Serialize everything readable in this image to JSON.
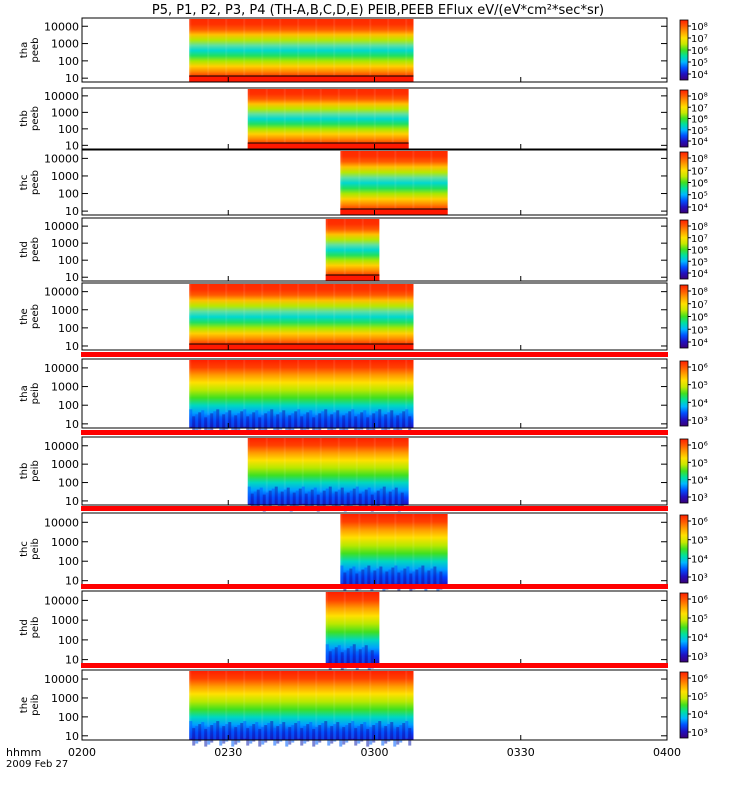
{
  "title": "P5, P1, P2, P3, P4 (TH-A,B,C,D,E) PEIB,PEEB EFlux eV/(eV*cm²*sec*sr)",
  "date_label": "2009 Feb 27",
  "time_axis_label": "hhmm",
  "colorscale": [
    "#3b0078",
    "#2010c0",
    "#0050ff",
    "#00b8ff",
    "#00e0a0",
    "#40e020",
    "#c8e800",
    "#ffe000",
    "#ffa000",
    "#ff5a00",
    "#ff2000"
  ],
  "chart_data": [
    {
      "type": "heatmap",
      "panel": "tha-peeb",
      "ylabel": [
        "tha",
        "peeb"
      ],
      "yticks": [
        "10000",
        "1000",
        "100",
        "10"
      ],
      "ylim": [
        6,
        30000
      ],
      "log_y": true,
      "x": [
        "0200",
        "0230",
        "0300",
        "0330",
        "0400"
      ],
      "xlim": [
        "02:00",
        "04:00"
      ],
      "data_range": [
        "02:22",
        "03:08"
      ],
      "colorbar_ticks": [
        "10⁸",
        "10⁷",
        "10⁶",
        "10⁵",
        "10⁴"
      ]
    },
    {
      "type": "heatmap",
      "panel": "thb-peeb",
      "ylabel": [
        "thb",
        "peeb"
      ],
      "yticks": [
        "10000",
        "1000",
        "100",
        "10"
      ],
      "ylim": [
        6,
        30000
      ],
      "log_y": true,
      "x": [
        "0200",
        "0230",
        "0300",
        "0330",
        "0400"
      ],
      "xlim": [
        "02:00",
        "04:00"
      ],
      "data_range": [
        "02:34",
        "03:07"
      ],
      "colorbar_ticks": [
        "10⁸",
        "10⁷",
        "10⁶",
        "10⁵",
        "10⁴"
      ]
    },
    {
      "type": "heatmap",
      "panel": "thc-peeb",
      "ylabel": [
        "thc",
        "peeb"
      ],
      "yticks": [
        "10000",
        "1000",
        "100",
        "10"
      ],
      "ylim": [
        6,
        30000
      ],
      "log_y": true,
      "x": [
        "0200",
        "0230",
        "0300",
        "0330",
        "0400"
      ],
      "xlim": [
        "02:00",
        "04:00"
      ],
      "data_range": [
        "02:53",
        "03:15"
      ],
      "colorbar_ticks": [
        "10⁸",
        "10⁷",
        "10⁶",
        "10⁵",
        "10⁴"
      ]
    },
    {
      "type": "heatmap",
      "panel": "thd-peeb",
      "ylabel": [
        "thd",
        "peeb"
      ],
      "yticks": [
        "10000",
        "1000",
        "100",
        "10"
      ],
      "ylim": [
        6,
        30000
      ],
      "log_y": true,
      "x": [
        "0200",
        "0230",
        "0300",
        "0330",
        "0400"
      ],
      "xlim": [
        "02:00",
        "04:00"
      ],
      "data_range": [
        "02:50",
        "03:01"
      ],
      "colorbar_ticks": [
        "10⁸",
        "10⁷",
        "10⁶",
        "10⁵",
        "10⁴"
      ]
    },
    {
      "type": "heatmap",
      "panel": "the-peeb",
      "ylabel": [
        "the",
        "peeb"
      ],
      "yticks": [
        "10000",
        "1000",
        "100",
        "10"
      ],
      "ylim": [
        6,
        30000
      ],
      "log_y": true,
      "x": [
        "0200",
        "0230",
        "0300",
        "0330",
        "0400"
      ],
      "xlim": [
        "02:00",
        "04:00"
      ],
      "data_range": [
        "02:22",
        "03:08"
      ],
      "colorbar_ticks": [
        "10⁸",
        "10⁷",
        "10⁶",
        "10⁵",
        "10⁴"
      ]
    },
    {
      "type": "heatmap",
      "panel": "tha-peib",
      "ylabel": [
        "tha",
        "peib"
      ],
      "yticks": [
        "10000",
        "1000",
        "100",
        "10"
      ],
      "ylim": [
        6,
        30000
      ],
      "log_y": true,
      "x": [
        "0200",
        "0230",
        "0300",
        "0330",
        "0400"
      ],
      "xlim": [
        "02:00",
        "04:00"
      ],
      "data_range": [
        "02:22",
        "03:08"
      ],
      "colorbar_ticks": [
        "10⁶",
        "10⁵",
        "10⁴",
        "10³"
      ]
    },
    {
      "type": "heatmap",
      "panel": "thb-peib",
      "ylabel": [
        "thb",
        "peib"
      ],
      "yticks": [
        "10000",
        "1000",
        "100",
        "10"
      ],
      "ylim": [
        6,
        30000
      ],
      "log_y": true,
      "x": [
        "0200",
        "0230",
        "0300",
        "0330",
        "0400"
      ],
      "xlim": [
        "02:00",
        "04:00"
      ],
      "data_range": [
        "02:34",
        "03:07"
      ],
      "colorbar_ticks": [
        "10⁶",
        "10⁵",
        "10⁴",
        "10³"
      ]
    },
    {
      "type": "heatmap",
      "panel": "thc-peib",
      "ylabel": [
        "thc",
        "peib"
      ],
      "yticks": [
        "10000",
        "1000",
        "100",
        "10"
      ],
      "ylim": [
        6,
        30000
      ],
      "log_y": true,
      "x": [
        "0200",
        "0230",
        "0300",
        "0330",
        "0400"
      ],
      "xlim": [
        "02:00",
        "04:00"
      ],
      "data_range": [
        "02:53",
        "03:15"
      ],
      "colorbar_ticks": [
        "10⁶",
        "10⁵",
        "10⁴",
        "10³"
      ]
    },
    {
      "type": "heatmap",
      "panel": "thd-peib",
      "ylabel": [
        "thd",
        "peib"
      ],
      "yticks": [
        "10000",
        "1000",
        "100",
        "10"
      ],
      "ylim": [
        6,
        30000
      ],
      "log_y": true,
      "x": [
        "0200",
        "0230",
        "0300",
        "0330",
        "0400"
      ],
      "xlim": [
        "02:00",
        "04:00"
      ],
      "data_range": [
        "02:50",
        "03:01"
      ],
      "colorbar_ticks": [
        "10⁶",
        "10⁵",
        "10⁴",
        "10³"
      ]
    },
    {
      "type": "heatmap",
      "panel": "the-peib",
      "ylabel": [
        "the",
        "peib"
      ],
      "yticks": [
        "10000",
        "1000",
        "100",
        "10"
      ],
      "ylim": [
        6,
        30000
      ],
      "log_y": true,
      "x": [
        "0200",
        "0230",
        "0300",
        "0330",
        "0400"
      ],
      "xlim": [
        "02:00",
        "04:00"
      ],
      "data_range": [
        "02:22",
        "03:08"
      ],
      "colorbar_ticks": [
        "10⁶",
        "10⁵",
        "10⁴",
        "10³"
      ]
    }
  ]
}
